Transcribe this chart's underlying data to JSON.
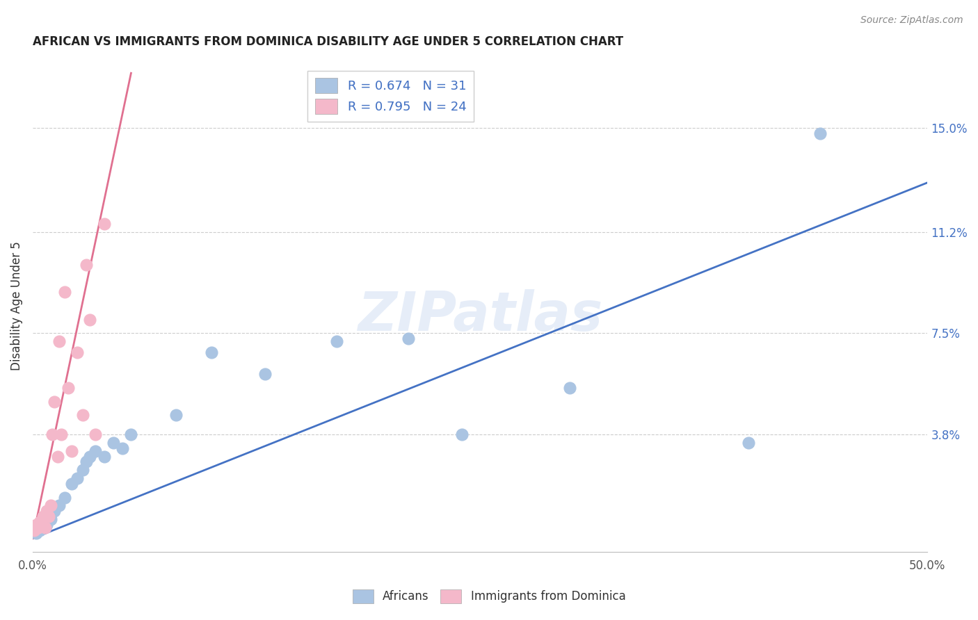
{
  "title": "AFRICAN VS IMMIGRANTS FROM DOMINICA DISABILITY AGE UNDER 5 CORRELATION CHART",
  "source": "Source: ZipAtlas.com",
  "ylabel": "Disability Age Under 5",
  "xlim": [
    0.0,
    0.5
  ],
  "ylim": [
    -0.005,
    0.175
  ],
  "xtick_positions": [
    0.0,
    0.1,
    0.2,
    0.3,
    0.4,
    0.5
  ],
  "xticklabels": [
    "0.0%",
    "",
    "",
    "",
    "",
    "50.0%"
  ],
  "ytick_labels_right": [
    "15.0%",
    "11.2%",
    "7.5%",
    "3.8%"
  ],
  "ytick_vals_right": [
    0.15,
    0.112,
    0.075,
    0.038
  ],
  "legend_R_blue": "0.674",
  "legend_N_blue": "31",
  "legend_R_pink": "0.795",
  "legend_N_pink": "24",
  "blue_color": "#aac4e2",
  "pink_color": "#f4b8ca",
  "blue_line_color": "#4472c4",
  "pink_line_color": "#e07090",
  "watermark": "ZIPatlas",
  "blue_scatter_x": [
    0.002,
    0.003,
    0.004,
    0.005,
    0.006,
    0.007,
    0.008,
    0.009,
    0.01,
    0.012,
    0.015,
    0.018,
    0.022,
    0.025,
    0.028,
    0.03,
    0.032,
    0.035,
    0.04,
    0.045,
    0.05,
    0.055,
    0.08,
    0.1,
    0.13,
    0.17,
    0.21,
    0.24,
    0.3,
    0.4,
    0.44
  ],
  "blue_scatter_y": [
    0.002,
    0.004,
    0.003,
    0.005,
    0.004,
    0.006,
    0.005,
    0.008,
    0.007,
    0.01,
    0.012,
    0.015,
    0.02,
    0.022,
    0.025,
    0.028,
    0.03,
    0.032,
    0.03,
    0.035,
    0.033,
    0.038,
    0.045,
    0.068,
    0.06,
    0.072,
    0.073,
    0.038,
    0.055,
    0.035,
    0.148
  ],
  "pink_scatter_x": [
    0.001,
    0.002,
    0.003,
    0.004,
    0.005,
    0.006,
    0.007,
    0.008,
    0.009,
    0.01,
    0.011,
    0.012,
    0.014,
    0.015,
    0.016,
    0.018,
    0.02,
    0.022,
    0.025,
    0.028,
    0.03,
    0.032,
    0.035,
    0.04
  ],
  "pink_scatter_y": [
    0.003,
    0.005,
    0.004,
    0.006,
    0.005,
    0.008,
    0.004,
    0.01,
    0.008,
    0.012,
    0.038,
    0.05,
    0.03,
    0.072,
    0.038,
    0.09,
    0.055,
    0.032,
    0.068,
    0.045,
    0.1,
    0.08,
    0.038,
    0.115
  ],
  "blue_line_x": [
    0.0,
    0.5
  ],
  "blue_line_y": [
    0.0,
    0.13
  ],
  "pink_line_x": [
    0.0,
    0.055
  ],
  "pink_line_y": [
    0.0,
    0.17
  ]
}
